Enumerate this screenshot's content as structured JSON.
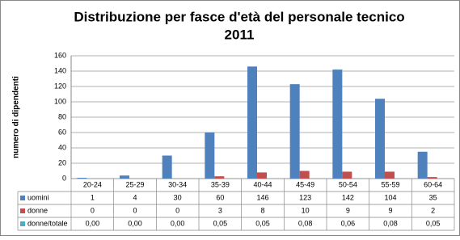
{
  "chart_data": {
    "type": "bar",
    "title": "Distribuzione per fasce d'età del personale tecnico",
    "subtitle": "2011",
    "y_label": "numero di dipendenti",
    "categories": [
      "20-24",
      "25-29",
      "30-34",
      "35-39",
      "40-44",
      "45-49",
      "50-54",
      "55-59",
      "60-64"
    ],
    "series": [
      {
        "name": "uomini",
        "color": "#4f81bd",
        "values": [
          1,
          4,
          30,
          60,
          146,
          123,
          142,
          104,
          35
        ]
      },
      {
        "name": "donne",
        "color": "#c0504d",
        "values": [
          0,
          0,
          0,
          3,
          8,
          10,
          9,
          9,
          2
        ]
      },
      {
        "name": "donne/totale",
        "color": "#4bacc6",
        "values": [
          0,
          0,
          0,
          0.05,
          0.05,
          0.08,
          0.06,
          0.08,
          0.05
        ],
        "value_labels": [
          "0,00",
          "0,00",
          "0,00",
          "0,05",
          "0,05",
          "0,08",
          "0,06",
          "0,08",
          "0,05"
        ]
      }
    ],
    "ylim": [
      0,
      160
    ],
    "yticks": [
      0,
      20,
      40,
      60,
      80,
      100,
      120,
      140,
      160
    ],
    "grid": true
  }
}
